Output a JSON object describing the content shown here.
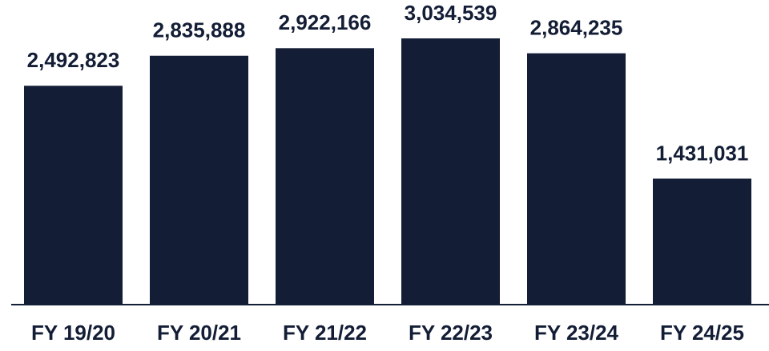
{
  "chart_data": {
    "type": "bar",
    "categories": [
      "FY 19/20",
      "FY 20/21",
      "FY 21/22",
      "FY 22/23",
      "FY 23/24",
      "FY 24/25"
    ],
    "values": [
      2492823,
      2835888,
      2922166,
      3034539,
      2864235,
      1431031
    ],
    "value_labels": [
      "2,492,823",
      "2,835,888",
      "2,922,166",
      "3,034,539",
      "2,864,235",
      "1,431,031"
    ],
    "color": "#131d35"
  }
}
